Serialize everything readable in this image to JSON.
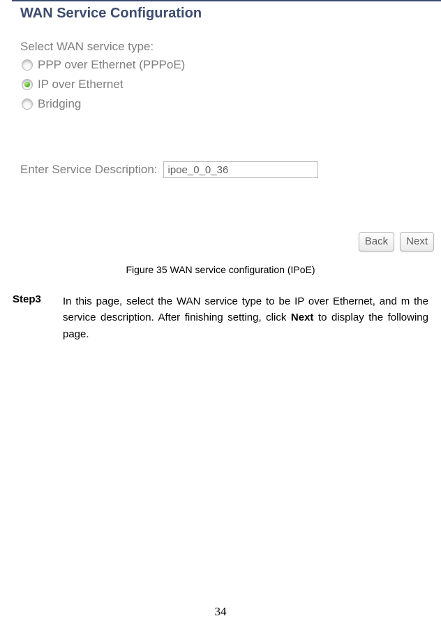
{
  "panel": {
    "title": "WAN Service Configuration",
    "prompt": "Select WAN service type:",
    "options": [
      {
        "label": "PPP over Ethernet (PPPoE)",
        "selected": false
      },
      {
        "label": "IP over Ethernet",
        "selected": true
      },
      {
        "label": "Bridging",
        "selected": false
      }
    ],
    "desc_label": "Enter Service Description:",
    "desc_value": "ipoe_0_0_36",
    "back_label": "Back",
    "next_label": "Next"
  },
  "caption": "Figure 35 WAN service configuration (IPoE)",
  "step": {
    "label": "Step3",
    "text_prefix": "In this page, select the WAN service type to be IP over Ethernet, and m the service description. After finishing setting, click",
    "text_bold": "Next",
    "text_suffix": "to display the following page."
  },
  "page_number": "34",
  "colors": {
    "title_color": "#3d4c6e",
    "muted_text": "#7f7f7f",
    "border_gray": "#b8b8b8",
    "top_border": "#384a6e"
  }
}
